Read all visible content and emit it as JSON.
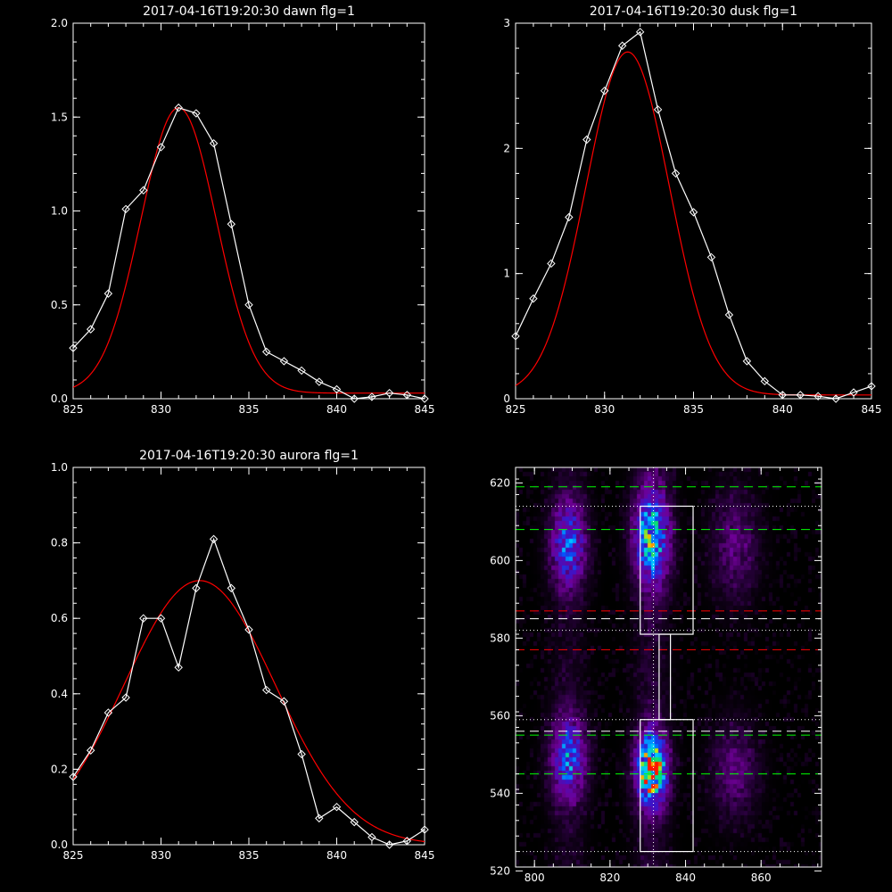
{
  "chart_data": [
    {
      "type": "line",
      "title": "2017-04-16T19:20:30 dawn flg=1",
      "xlim": [
        825,
        845
      ],
      "ylim": [
        0,
        2.0
      ],
      "xticks": [
        825,
        830,
        835,
        840,
        845
      ],
      "xtick_labels": [
        "825",
        "830",
        "835",
        "840",
        "845"
      ],
      "yticks": [
        0,
        0.5,
        1.0,
        1.5,
        2.0
      ],
      "ytick_labels": [
        "0.0",
        "0.5",
        "1.0",
        "1.5",
        "2.0"
      ],
      "colors": {
        "data": "#ffffff",
        "fit": "#ff0000"
      },
      "series": [
        {
          "x": [
            825,
            826,
            827,
            828,
            829,
            830,
            831,
            832,
            833,
            834,
            835,
            836,
            837,
            838,
            839,
            840,
            841,
            842,
            843,
            844,
            845
          ],
          "y": [
            0.27,
            0.37,
            0.56,
            1.01,
            1.11,
            1.34,
            1.55,
            1.52,
            1.36,
            0.93,
            0.5,
            0.25,
            0.2,
            0.15,
            0.09,
            0.05,
            0.0,
            0.01,
            0.03,
            0.02,
            0.0
          ],
          "markers": "diamond"
        },
        {
          "fit": {
            "amp": 1.52,
            "center": 831.0,
            "sigma": 2.15,
            "offset": 0.03
          }
        }
      ]
    },
    {
      "type": "line",
      "title": "2017-04-16T19:20:30 dusk flg=1",
      "xlim": [
        825,
        845
      ],
      "ylim": [
        0,
        3
      ],
      "xticks": [
        825,
        830,
        835,
        840,
        845
      ],
      "xtick_labels": [
        "825",
        "830",
        "835",
        "840",
        "845"
      ],
      "yticks": [
        0,
        1,
        2,
        3
      ],
      "ytick_labels": [
        "0",
        "1",
        "2",
        "3"
      ],
      "colors": {
        "data": "#ffffff",
        "fit": "#ff0000"
      },
      "series": [
        {
          "x": [
            825,
            826,
            827,
            828,
            829,
            830,
            831,
            832,
            833,
            834,
            835,
            836,
            837,
            838,
            839,
            840,
            841,
            842,
            843,
            844,
            845
          ],
          "y": [
            0.5,
            0.8,
            1.08,
            1.45,
            2.07,
            2.46,
            2.82,
            2.93,
            2.31,
            1.8,
            1.49,
            1.13,
            0.67,
            0.3,
            0.14,
            0.03,
            0.03,
            0.02,
            0.0,
            0.05,
            0.1
          ],
          "markers": "diamond"
        },
        {
          "fit": {
            "amp": 2.74,
            "center": 831.3,
            "sigma": 2.35,
            "offset": 0.03
          }
        }
      ]
    },
    {
      "type": "line",
      "title": "2017-04-16T19:20:30 aurora flg=1",
      "xlim": [
        825,
        845
      ],
      "ylim": [
        0,
        1.0
      ],
      "xticks": [
        825,
        830,
        835,
        840,
        845
      ],
      "xtick_labels": [
        "825",
        "830",
        "835",
        "840",
        "845"
      ],
      "yticks": [
        0,
        0.2,
        0.4,
        0.6,
        0.8,
        1.0
      ],
      "ytick_labels": [
        "0.0",
        "0.2",
        "0.4",
        "0.6",
        "0.8",
        "1.0"
      ],
      "colors": {
        "data": "#ffffff",
        "fit": "#ff0000"
      },
      "series": [
        {
          "x": [
            825,
            826,
            827,
            828,
            829,
            830,
            831,
            832,
            833,
            834,
            835,
            836,
            837,
            838,
            839,
            840,
            841,
            842,
            843,
            844,
            845
          ],
          "y": [
            0.18,
            0.25,
            0.35,
            0.39,
            0.6,
            0.6,
            0.47,
            0.68,
            0.81,
            0.68,
            0.57,
            0.41,
            0.38,
            0.24,
            0.07,
            0.1,
            0.06,
            0.02,
            0.0,
            0.01,
            0.04
          ],
          "markers": "diamond"
        },
        {
          "fit": {
            "amp": 0.7,
            "center": 832.2,
            "sigma": 4.3,
            "offset": 0.0
          }
        }
      ]
    },
    {
      "type": "heatmap",
      "title": "",
      "xlim": [
        795,
        876
      ],
      "ylim": [
        521,
        624
      ],
      "xticks": [
        800,
        820,
        840,
        860
      ],
      "xtick_labels": [
        "800",
        "820",
        "840",
        "860"
      ],
      "yticks": [
        520,
        540,
        560,
        580,
        600,
        620
      ],
      "ytick_labels": [
        "520",
        "540",
        "560",
        "580",
        "600",
        "620"
      ],
      "blobs": [
        {
          "x": 809,
          "y": 604,
          "sx": 3.0,
          "sy": 7,
          "amp": 0.45
        },
        {
          "x": 809,
          "y": 549,
          "sx": 3.0,
          "sy": 7,
          "amp": 0.45
        },
        {
          "x": 831,
          "y": 606,
          "sx": 3.0,
          "sy": 8,
          "amp": 0.62
        },
        {
          "x": 831,
          "y": 546,
          "sx": 2.6,
          "sy": 6,
          "amp": 0.95
        },
        {
          "x": 853,
          "y": 604,
          "sx": 4.0,
          "sy": 9,
          "amp": 0.16
        },
        {
          "x": 853,
          "y": 546,
          "sx": 4.0,
          "sy": 8,
          "amp": 0.16
        }
      ],
      "boxes": [
        {
          "x0": 828,
          "x1": 842,
          "y0": 581,
          "y1": 614
        },
        {
          "x0": 833,
          "x1": 836,
          "y0": 559,
          "y1": 581
        },
        {
          "x0": 828,
          "x1": 842,
          "y0": 525,
          "y1": 559
        }
      ],
      "hlines": [
        {
          "y": 619,
          "color": "#00ff00",
          "style": "dashed"
        },
        {
          "y": 608,
          "color": "#00ff00",
          "style": "dashed"
        },
        {
          "y": 555,
          "color": "#00ff00",
          "style": "dashed"
        },
        {
          "y": 545,
          "color": "#00ff00",
          "style": "dashed"
        },
        {
          "y": 587,
          "color": "#ff0000",
          "style": "dashed"
        },
        {
          "y": 577,
          "color": "#ff0000",
          "style": "dashed"
        },
        {
          "y": 585,
          "color": "#ffffff",
          "style": "dashed"
        },
        {
          "y": 556,
          "color": "#ffffff",
          "style": "dashed"
        },
        {
          "y": 614,
          "color": "#ffffff",
          "style": "dotted"
        },
        {
          "y": 582,
          "color": "#ffffff",
          "style": "dotted"
        },
        {
          "y": 559,
          "color": "#ffffff",
          "style": "dotted"
        },
        {
          "y": 525,
          "color": "#ffffff",
          "style": "dotted"
        }
      ],
      "vlines": [
        {
          "x": 831.5,
          "color": "#ffffff",
          "style": "dotted"
        }
      ]
    }
  ]
}
